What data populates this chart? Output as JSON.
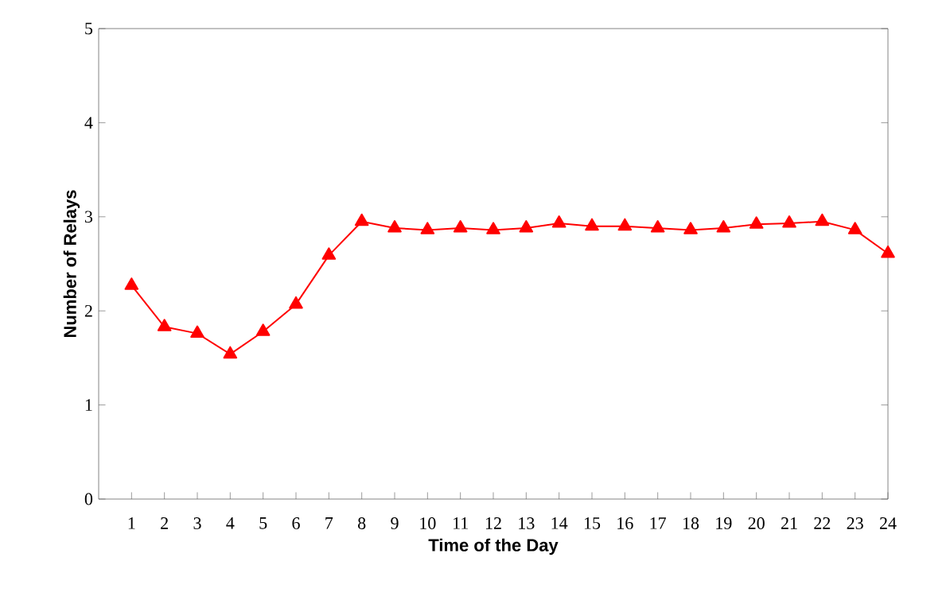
{
  "chart_data": {
    "type": "line",
    "xlabel": "Time of the Day",
    "ylabel": "Number of Relays",
    "x": [
      1,
      2,
      3,
      4,
      5,
      6,
      7,
      8,
      9,
      10,
      11,
      12,
      13,
      14,
      15,
      16,
      17,
      18,
      19,
      20,
      21,
      22,
      23,
      24
    ],
    "series": [
      {
        "color": "#ff0000",
        "values": [
          2.27,
          1.83,
          1.76,
          1.54,
          1.78,
          2.07,
          2.59,
          2.95,
          2.88,
          2.86,
          2.88,
          2.86,
          2.88,
          2.93,
          2.9,
          2.9,
          2.88,
          2.86,
          2.88,
          2.92,
          2.93,
          2.95,
          2.86,
          2.61
        ]
      }
    ],
    "xlim": [
      0,
      24
    ],
    "xticks": [
      1,
      2,
      3,
      4,
      5,
      6,
      7,
      8,
      9,
      10,
      11,
      12,
      13,
      14,
      15,
      16,
      17,
      18,
      19,
      20,
      21,
      22,
      23,
      24
    ],
    "ylim": [
      0,
      5
    ],
    "yticks": [
      0,
      1,
      2,
      3,
      4,
      5
    ],
    "marker": "triangle",
    "line_style": "solid"
  }
}
